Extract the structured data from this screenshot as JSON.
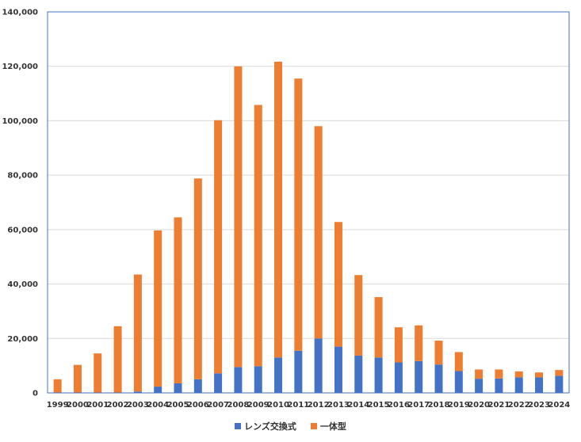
{
  "chart_data": {
    "type": "bar",
    "stacked": true,
    "title": "",
    "xlabel": "",
    "ylabel": "",
    "ylim": [
      0,
      140000
    ],
    "yticks": [
      0,
      20000,
      40000,
      60000,
      80000,
      100000,
      120000,
      140000
    ],
    "ytick_labels": [
      "0",
      "20,000",
      "40,000",
      "60,000",
      "80,000",
      "100,000",
      "120,000",
      "140,000"
    ],
    "grid": true,
    "legend_position": "bottom",
    "categories": [
      "1999",
      "2000",
      "2001",
      "2002",
      "2003",
      "2004",
      "2005",
      "2006",
      "2007",
      "2008",
      "2009",
      "2010",
      "2011",
      "2012",
      "2013",
      "2014",
      "2015",
      "2016",
      "2017",
      "2018",
      "2019",
      "2020",
      "2021",
      "2022",
      "2023",
      "2024"
    ],
    "series": [
      {
        "name": "レンズ交換式",
        "color": "#4472C4",
        "values": [
          0,
          0,
          0,
          0,
          500,
          2300,
          3500,
          5000,
          7200,
          9500,
          9800,
          13000,
          15500,
          20000,
          17000,
          13700,
          13000,
          11200,
          11700,
          10400,
          8000,
          5200,
          5300,
          5700,
          5700,
          6300
        ]
      },
      {
        "name": "一体型",
        "color": "#ED7D31",
        "values": [
          5000,
          10300,
          14500,
          24500,
          43000,
          57400,
          61000,
          73800,
          93000,
          110500,
          96000,
          108700,
          100000,
          78000,
          45800,
          29600,
          22200,
          12900,
          13100,
          8800,
          7000,
          3400,
          3300,
          2200,
          1800,
          2100
        ]
      }
    ]
  }
}
